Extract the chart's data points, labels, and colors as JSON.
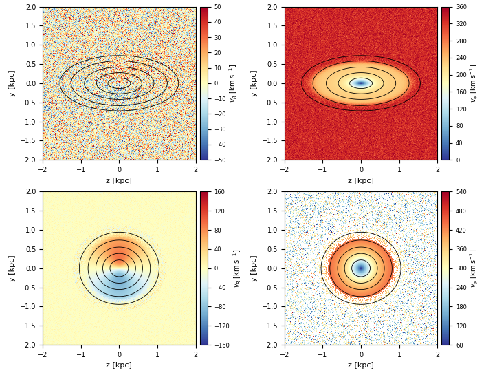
{
  "xlim": [
    -2.0,
    2.0
  ],
  "ylim": [
    -2.0,
    2.0
  ],
  "xlabel": "z [kpc]",
  "ylabel": "y [kpc]",
  "panels": [
    {
      "cmap": "RdYlBu_r",
      "vmin": -50,
      "vmax": 50,
      "cb_label_latex": "$v_R$ [km s$^{-1}$]",
      "colorbar_ticks": [
        -50,
        -40,
        -30,
        -20,
        -10,
        0,
        10,
        20,
        30,
        40,
        50
      ],
      "pattern": "noisy_dipole"
    },
    {
      "cmap": "RdYlBu_r",
      "vmin": 0,
      "vmax": 360,
      "cb_label_latex": "$v_\\varphi$ [km s$^{-1}$]",
      "colorbar_ticks": [
        0,
        40,
        80,
        120,
        160,
        200,
        240,
        280,
        320,
        360
      ],
      "pattern": "smooth_rotation"
    },
    {
      "cmap": "RdYlBu_r",
      "vmin": -160,
      "vmax": 160,
      "cb_label_latex": "$v_R$ [km s$^{-1}$]",
      "colorbar_ticks": [
        -160,
        -120,
        -80,
        -40,
        0,
        40,
        80,
        120,
        160
      ],
      "pattern": "young_dipole"
    },
    {
      "cmap": "RdYlBu_r",
      "vmin": 60,
      "vmax": 540,
      "cb_label_latex": "$v_\\varphi$ [km s$^{-1}$]",
      "colorbar_ticks": [
        60,
        120,
        180,
        240,
        300,
        360,
        420,
        480,
        540
      ],
      "pattern": "young_rotation"
    }
  ],
  "figsize": [
    7.04,
    5.42
  ],
  "dpi": 100
}
